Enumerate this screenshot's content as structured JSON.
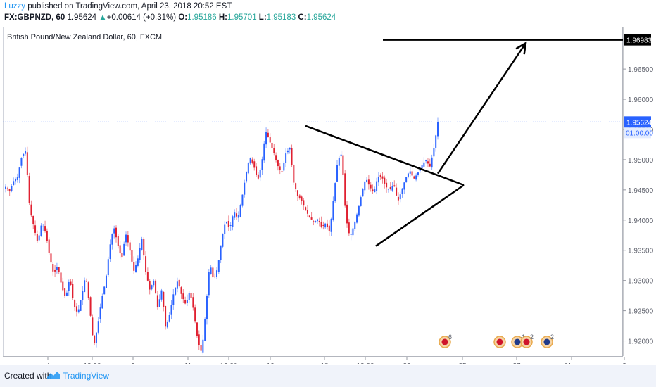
{
  "header": {
    "author": "Luzzy",
    "published_text": " published on TradingView.com, April 23, 2018 20:52 EST",
    "symbol_line": "FX:GBPNZD, 60",
    "last": "1.95624",
    "change_arrow": "▲",
    "change": "+0.00614 (+0.31%)",
    "o_label": "O:",
    "o_val": "1.95186",
    "h_label": "H:",
    "h_val": "1.95701",
    "l_label": "L:",
    "l_val": "1.95183",
    "c_label": "C:",
    "c_val": "1.95624"
  },
  "footer": {
    "created_with": "Created with",
    "brand": "TradingView"
  },
  "colors": {
    "up": "#2962ff",
    "down": "#e02030",
    "price_line": "#2962ff",
    "drawing": "#000000",
    "axis_text": "#5d606b",
    "grid": "#eef0f3"
  },
  "chart_data": {
    "type": "candlestick",
    "title": "British Pound/New Zealand Dollar, 60, FXCM",
    "ylim": [
      1.9175,
      1.972
    ],
    "y_ticks": [
      "1.92000",
      "1.92500",
      "1.93000",
      "1.93500",
      "1.94000",
      "1.94500",
      "1.95000",
      "1.95500",
      "1.96000",
      "1.96500"
    ],
    "x_ticks": [
      "4",
      "12:00",
      "9",
      "11",
      "12:00",
      "16",
      "18",
      "12:00",
      "23",
      "25",
      "27",
      "May",
      "3"
    ],
    "current_price": "1.95624",
    "countdown": "01:00:00",
    "target_level": "1.96983",
    "price_path": [
      1.9455,
      1.9448,
      1.9465,
      1.9472,
      1.9505,
      1.9515,
      1.942,
      1.939,
      1.9362,
      1.9395,
      1.938,
      1.934,
      1.931,
      1.9325,
      1.929,
      1.927,
      1.9305,
      1.926,
      1.9245,
      1.9275,
      1.931,
      1.9255,
      1.919,
      1.9225,
      1.927,
      1.93,
      1.9355,
      1.939,
      1.936,
      1.9335,
      1.9378,
      1.9352,
      1.9315,
      1.9335,
      1.937,
      1.9315,
      1.9285,
      1.93,
      1.9255,
      1.9285,
      1.922,
      1.9245,
      1.928,
      1.93,
      1.9275,
      1.926,
      1.9282,
      1.925,
      1.92,
      1.918,
      1.925,
      1.933,
      1.93,
      1.9322,
      1.937,
      1.94,
      1.9385,
      1.9415,
      1.9402,
      1.9435,
      1.9475,
      1.9505,
      1.949,
      1.9465,
      1.9495,
      1.9548,
      1.953,
      1.9512,
      1.949,
      1.9478,
      1.951,
      1.952,
      1.9462,
      1.944,
      1.9432,
      1.9415,
      1.9405,
      1.9396,
      1.9402,
      1.9388,
      1.9395,
      1.938,
      1.944,
      1.95,
      1.951,
      1.9405,
      1.9372,
      1.939,
      1.9415,
      1.9445,
      1.947,
      1.9455,
      1.9445,
      1.9472,
      1.9472,
      1.9455,
      1.945,
      1.946,
      1.943,
      1.945,
      1.947,
      1.9482,
      1.9468,
      1.9478,
      1.949,
      1.95,
      1.9488,
      1.9518,
      1.9562
    ],
    "drawings": [
      {
        "kind": "triangle-upper",
        "from": [
          "Apr 17",
          "1.95560"
        ],
        "to": [
          "Apr 24",
          "1.94580"
        ]
      },
      {
        "kind": "triangle-lower",
        "from": [
          "Apr 20",
          "1.93570"
        ],
        "to": [
          "Apr 24",
          "1.94580"
        ]
      },
      {
        "kind": "breakout-arrow",
        "from": [
          "Apr 24",
          "1.94770"
        ],
        "to": [
          "Apr 27",
          "1.96983"
        ]
      },
      {
        "kind": "horizontal-target",
        "price": "1.96983"
      }
    ],
    "events": [
      {
        "flag": "uk",
        "count": "6"
      },
      {
        "flag": "uk",
        "count": ""
      },
      {
        "flag": "nz",
        "count": "4"
      },
      {
        "flag": "uk",
        "count": "2"
      },
      {
        "flag": "nz",
        "count": "2"
      }
    ],
    "grid": false
  }
}
